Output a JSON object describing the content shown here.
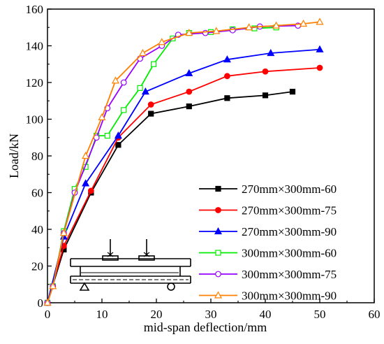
{
  "chart_data": {
    "type": "line",
    "xlabel": "mid-span deflection/mm",
    "ylabel": "Load/kN",
    "xlim": [
      0,
      60
    ],
    "ylim": [
      0,
      160
    ],
    "xticks": [
      "0",
      "10",
      "20",
      "30",
      "40",
      "50",
      "60"
    ],
    "yticks": [
      "0",
      "20",
      "40",
      "60",
      "80",
      "100",
      "120",
      "140",
      "160"
    ],
    "grid": false,
    "legend_position": "bottom-right",
    "series": [
      {
        "name": "270mm×300mm-60",
        "color": "#000000",
        "marker": "square-filled",
        "x": [
          0,
          3,
          8,
          13,
          19,
          26,
          33,
          40,
          45
        ],
        "y": [
          0,
          29,
          60,
          86,
          103,
          107,
          111.5,
          113,
          115
        ]
      },
      {
        "name": "270mm×300mm-75",
        "color": "#ff0000",
        "marker": "circle-filled",
        "x": [
          0,
          3,
          8,
          13,
          19,
          26,
          33,
          40,
          50
        ],
        "y": [
          0,
          31,
          61,
          90,
          108,
          115,
          123.5,
          126,
          128
        ]
      },
      {
        "name": "270mm×300mm-90",
        "color": "#0000ff",
        "marker": "triangle-filled",
        "x": [
          0,
          3,
          7,
          13,
          18,
          26,
          33,
          41,
          50
        ],
        "y": [
          0,
          36,
          65,
          91,
          115,
          125,
          132.5,
          136,
          138
        ]
      },
      {
        "name": "300mm×300mm-60",
        "color": "#00ee00",
        "marker": "square-open",
        "x": [
          0,
          1,
          3,
          5,
          7,
          9,
          11,
          14,
          17,
          19.5,
          23,
          26,
          30,
          34,
          38,
          42
        ],
        "y": [
          0,
          9,
          39,
          62,
          74,
          91,
          91,
          105,
          117,
          130,
          144,
          147,
          147.5,
          149,
          149.5,
          150
        ]
      },
      {
        "name": "300mm×300mm-75",
        "color": "#9900ff",
        "marker": "circle-open",
        "x": [
          0,
          1,
          3,
          5,
          9,
          11,
          14,
          17,
          21,
          24,
          29,
          34,
          39,
          46
        ],
        "y": [
          0,
          9,
          38,
          60,
          90,
          106,
          120,
          133,
          140,
          146,
          147,
          148.5,
          150.5,
          151
        ]
      },
      {
        "name": "300mm×300mm-90",
        "color": "#ff8000",
        "marker": "triangle-open",
        "x": [
          0,
          1,
          3,
          7,
          10,
          12.5,
          17.5,
          21,
          26,
          31,
          37,
          42,
          47,
          50
        ],
        "y": [
          0,
          9,
          38,
          80,
          101,
          121,
          136,
          142,
          147,
          148,
          150,
          151,
          152,
          153
        ]
      }
    ]
  }
}
